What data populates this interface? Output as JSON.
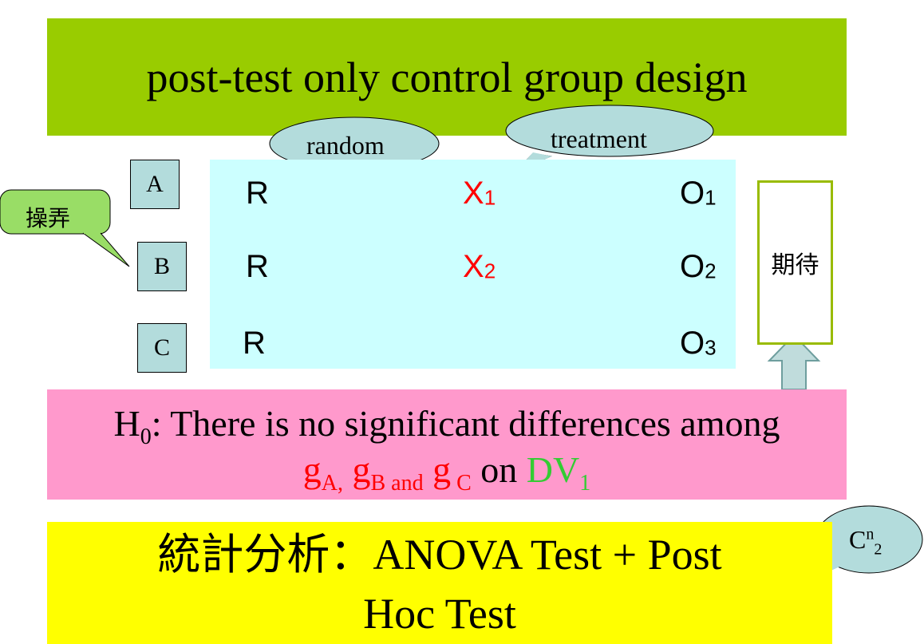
{
  "title": "post-test only control group design",
  "callouts": {
    "random": "random",
    "treatment": "treatment",
    "manipulate": "操弄",
    "combination_base": "C",
    "combination_n": "n",
    "combination_k": "2"
  },
  "groups": [
    "A",
    "B",
    "C"
  ],
  "rows": [
    {
      "random": "R",
      "treatment_base": "X",
      "treatment_sub": "1",
      "observe_base": "O",
      "observe_sub": "1"
    },
    {
      "random": "R",
      "treatment_base": "X",
      "treatment_sub": "2",
      "observe_base": "O",
      "observe_sub": "2"
    },
    {
      "random": "R",
      "treatment_base": "",
      "treatment_sub": "",
      "observe_base": "O",
      "observe_sub": "3"
    }
  ],
  "expectation": "期待",
  "hypothesis": {
    "h": "H",
    "h_sub": "0",
    "statement": ":  There is no significant differences among",
    "g1": "g",
    "g1_sub": "A,",
    "g2": " g",
    "g2_sub": "B and",
    "g3": " g",
    "g3_sub": " C",
    "on": " on ",
    "dv": "DV",
    "dv_sub": "1"
  },
  "statistics": {
    "label": "統計分析",
    "colon": "：",
    "line1_rest": "ANOVA Test + Post",
    "line2": "Hoc Test"
  },
  "colors": {
    "title_bg": "#99cc00",
    "design_bg": "#ccffff",
    "group_bg": "#b3dcdc",
    "hypothesis_bg": "#ff99cc",
    "stats_bg": "#ffff00",
    "callout_bg": "#b3dcdc",
    "manipulate_bg": "#99dd66",
    "treatment_text": "#ff0000",
    "dv_text": "#33cc33"
  }
}
